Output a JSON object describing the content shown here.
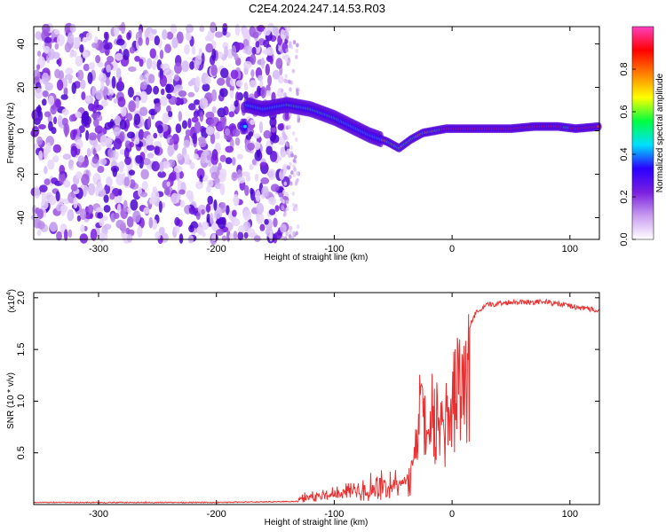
{
  "title": "C2E4.2024.247.14.53.R03",
  "chart_data": [
    {
      "type": "heatmap",
      "name": "spectrogram",
      "xlabel": "Height of straight line (km)",
      "ylabel": "Frequency (Hz)",
      "xlim": [
        -355,
        125
      ],
      "ylim": [
        -50,
        48
      ],
      "xticks": [
        -300,
        -200,
        -100,
        0,
        100
      ],
      "yticks": [
        -40,
        -20,
        0,
        20,
        40
      ],
      "colorbar": {
        "label": "Normalized spectral amplitude",
        "range": [
          0,
          1
        ],
        "ticks": [
          0.0,
          0.2,
          0.4,
          0.6,
          0.8
        ],
        "tick_labels": [
          "0.0",
          "0.2",
          "0.4",
          "0.6",
          "0.8"
        ],
        "colormap": [
          "#ffffff",
          "#c89cf0",
          "#7a1fe0",
          "#2a00ff",
          "#00e0ff",
          "#00ff40",
          "#ffff00",
          "#ff8000",
          "#ff0000",
          "#ff40c0"
        ]
      },
      "ridge": {
        "description_points": [
          {
            "x": -175,
            "y": 12
          },
          {
            "x": -160,
            "y": 10
          },
          {
            "x": -150,
            "y": 11
          },
          {
            "x": -140,
            "y": 12
          },
          {
            "x": -120,
            "y": 10
          },
          {
            "x": -100,
            "y": 6
          },
          {
            "x": -85,
            "y": 2
          },
          {
            "x": -70,
            "y": -2
          },
          {
            "x": -55,
            "y": -5
          },
          {
            "x": -45,
            "y": -8
          },
          {
            "x": -35,
            "y": -4
          },
          {
            "x": -25,
            "y": -1
          },
          {
            "x": -15,
            "y": 0
          },
          {
            "x": -5,
            "y": 1
          },
          {
            "x": 10,
            "y": 1
          },
          {
            "x": 50,
            "y": 1
          },
          {
            "x": 70,
            "y": 2
          },
          {
            "x": 90,
            "y": 2
          },
          {
            "x": 105,
            "y": 1
          },
          {
            "x": 125,
            "y": 2
          }
        ]
      }
    },
    {
      "type": "line",
      "name": "snr",
      "xlabel": "Height of straight line (km)",
      "ylabel": "SNR (10 * v/v)",
      "scale_label": "(x10",
      "scale_exponent": "4",
      "scale_close": ")",
      "xlim": [
        -355,
        125
      ],
      "ylim": [
        0,
        2.05
      ],
      "xticks": [
        -300,
        -200,
        -100,
        0,
        100
      ],
      "yticks": [
        0.5,
        1.0,
        1.5,
        2.0
      ],
      "ytick_labels": [
        "0.5",
        "1.0",
        "1.5",
        "2.0"
      ],
      "series": [
        {
          "name": "SNR",
          "color": "#e83030",
          "envelope": [
            {
              "x": -355,
              "y": 0.02
            },
            {
              "x": -200,
              "y": 0.02
            },
            {
              "x": -130,
              "y": 0.03
            },
            {
              "x": -110,
              "y": 0.08
            },
            {
              "x": -90,
              "y": 0.14
            },
            {
              "x": -75,
              "y": 0.2
            },
            {
              "x": -60,
              "y": 0.28
            },
            {
              "x": -50,
              "y": 0.3
            },
            {
              "x": -40,
              "y": 0.25
            },
            {
              "x": -33,
              "y": 0.45
            },
            {
              "x": -30,
              "y": 1.1
            },
            {
              "x": -25,
              "y": 1.15
            },
            {
              "x": -20,
              "y": 0.9
            },
            {
              "x": -15,
              "y": 1.2
            },
            {
              "x": -10,
              "y": 1.35
            },
            {
              "x": 0,
              "y": 1.45
            },
            {
              "x": 10,
              "y": 1.6
            },
            {
              "x": 20,
              "y": 1.85
            },
            {
              "x": 30,
              "y": 1.93
            },
            {
              "x": 50,
              "y": 1.96
            },
            {
              "x": 80,
              "y": 1.96
            },
            {
              "x": 100,
              "y": 1.92
            },
            {
              "x": 110,
              "y": 1.9
            },
            {
              "x": 125,
              "y": 1.88
            }
          ]
        }
      ]
    }
  ]
}
